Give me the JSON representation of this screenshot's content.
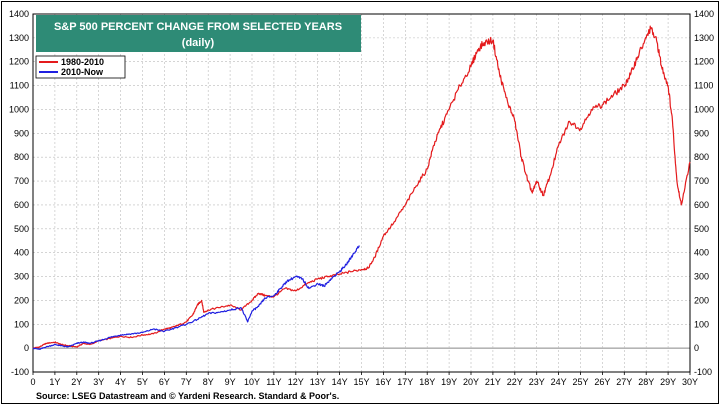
{
  "chart_data": {
    "type": "line",
    "title": "S&P 500 PERCENT CHANGE FROM SELECTED YEARS",
    "subtitle": "(daily)",
    "source": "Source: LSEG Datastream and © Yardeni Research. Standard & Poor's.",
    "xlabel": "",
    "ylabel": "",
    "xlim": [
      0,
      30
    ],
    "ylim": [
      -100,
      1400
    ],
    "yticks": [
      -100,
      0,
      100,
      200,
      300,
      400,
      500,
      600,
      700,
      800,
      900,
      1000,
      1100,
      1200,
      1300,
      1400
    ],
    "xticks": [
      {
        "v": 0,
        "label": "0"
      },
      {
        "v": 1,
        "label": "1Y"
      },
      {
        "v": 2,
        "label": "2Y"
      },
      {
        "v": 3,
        "label": "3Y"
      },
      {
        "v": 4,
        "label": "4Y"
      },
      {
        "v": 5,
        "label": "5Y"
      },
      {
        "v": 6,
        "label": "6Y"
      },
      {
        "v": 7,
        "label": "7Y"
      },
      {
        "v": 8,
        "label": "8Y"
      },
      {
        "v": 9,
        "label": "9Y"
      },
      {
        "v": 10,
        "label": "10Y"
      },
      {
        "v": 11,
        "label": "11Y"
      },
      {
        "v": 12,
        "label": "12Y"
      },
      {
        "v": 13,
        "label": "13Y"
      },
      {
        "v": 14,
        "label": "14Y"
      },
      {
        "v": 15,
        "label": "15Y"
      },
      {
        "v": 16,
        "label": "16Y"
      },
      {
        "v": 17,
        "label": "17Y"
      },
      {
        "v": 18,
        "label": "18Y"
      },
      {
        "v": 19,
        "label": "19Y"
      },
      {
        "v": 20,
        "label": "20Y"
      },
      {
        "v": 21,
        "label": "21Y"
      },
      {
        "v": 22,
        "label": "22Y"
      },
      {
        "v": 23,
        "label": "23Y"
      },
      {
        "v": 24,
        "label": "24Y"
      },
      {
        "v": 25,
        "label": "25Y"
      },
      {
        "v": 26,
        "label": "26Y"
      },
      {
        "v": 27,
        "label": "27Y"
      },
      {
        "v": 28,
        "label": "28Y"
      },
      {
        "v": 29,
        "label": "29Y"
      },
      {
        "v": 30,
        "label": "30Y"
      }
    ],
    "grid": true,
    "legend_position": "top-left",
    "series": [
      {
        "name": "1980-2010",
        "color": "#e41a1c",
        "x": [
          0,
          0.3,
          0.6,
          1,
          1.3,
          1.6,
          2,
          2.3,
          2.6,
          3,
          3.5,
          4,
          4.5,
          5,
          5.5,
          6,
          6.3,
          6.6,
          7,
          7.3,
          7.5,
          7.7,
          7.8,
          8,
          8.5,
          9,
          9.5,
          10,
          10.3,
          10.6,
          11,
          11.5,
          12,
          12.5,
          13,
          13.5,
          14,
          14.5,
          15,
          15.3,
          15.6,
          16,
          16.5,
          17,
          17.5,
          18,
          18.3,
          18.6,
          19,
          19.5,
          20,
          20.3,
          20.6,
          21,
          21.3,
          21.6,
          22,
          22.3,
          22.6,
          22.8,
          23,
          23.3,
          23.6,
          24,
          24.5,
          25,
          25.5,
          26,
          26.5,
          27,
          27.3,
          27.6,
          28,
          28.2,
          28.5,
          28.7,
          29,
          29.2,
          29.4,
          29.6,
          30
        ],
        "values": [
          0,
          5,
          20,
          25,
          15,
          10,
          5,
          20,
          15,
          30,
          40,
          50,
          45,
          55,
          60,
          80,
          85,
          95,
          110,
          140,
          180,
          200,
          150,
          160,
          170,
          180,
          160,
          200,
          230,
          220,
          215,
          250,
          240,
          270,
          290,
          300,
          310,
          320,
          330,
          335,
          380,
          470,
          530,
          600,
          680,
          750,
          850,
          920,
          1000,
          1100,
          1180,
          1250,
          1280,
          1290,
          1150,
          1050,
          950,
          800,
          700,
          650,
          700,
          640,
          720,
          850,
          950,
          920,
          1000,
          1020,
          1060,
          1100,
          1150,
          1220,
          1300,
          1340,
          1280,
          1180,
          1100,
          950,
          700,
          600,
          780
        ]
      },
      {
        "name": "2010-Now",
        "color": "#1f1fe0",
        "x": [
          0,
          0.3,
          0.6,
          1,
          1.3,
          1.6,
          2,
          2.3,
          2.6,
          3,
          3.5,
          4,
          4.5,
          5,
          5.5,
          6,
          6.5,
          7,
          7.5,
          8,
          8.5,
          9,
          9.5,
          9.8,
          10,
          10.3,
          10.6,
          11,
          11.3,
          11.6,
          12,
          12.3,
          12.6,
          13,
          13.3,
          13.6,
          14,
          14.3,
          14.6,
          14.9
        ],
        "values": [
          0,
          -5,
          5,
          15,
          10,
          5,
          20,
          25,
          20,
          30,
          45,
          55,
          60,
          65,
          80,
          70,
          85,
          100,
          120,
          145,
          150,
          160,
          170,
          110,
          155,
          175,
          210,
          220,
          250,
          280,
          300,
          290,
          250,
          270,
          260,
          290,
          320,
          350,
          390,
          430
        ]
      }
    ]
  }
}
